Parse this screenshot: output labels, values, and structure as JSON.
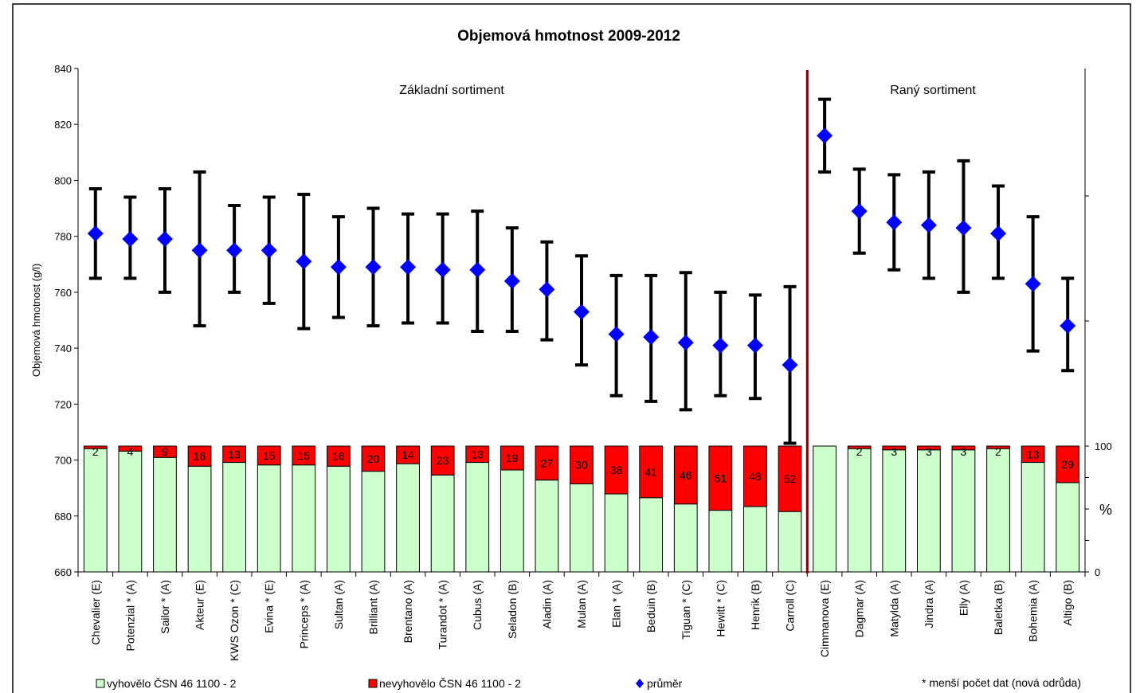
{
  "chart_data": {
    "type": "combo-bar-errorbar",
    "title": "Objemová hmotnost 2009-2012",
    "ylabel": "Objemová hmotnost (g/l)",
    "ylim": [
      660,
      840
    ],
    "yticks": [
      660,
      680,
      700,
      720,
      740,
      760,
      780,
      800,
      820,
      840
    ],
    "y2ticks": [
      "0",
      "%",
      "100"
    ],
    "sections": [
      {
        "label": "Základní sortiment"
      },
      {
        "label": "Raný sortiment"
      }
    ],
    "categories": [
      "Chevalier (E)",
      "Potenzial * (A)",
      "Sailor * (A)",
      "Akteur (E)",
      "KWS Ozon * (C)",
      "Evina * (E)",
      "Princeps * (A)",
      "Sultan (A)",
      "Brilliant (A)",
      "Brentano (A)",
      "Turandot * (A)",
      "Cubus (A)",
      "Seladon (B)",
      "Aladin (A)",
      "Mulan (A)",
      "Elan * (A)",
      "Beduin (B)",
      "Tiguan * (C)",
      "Hewitt * (C)",
      "Henrik (B)",
      "Carroll (C)",
      "Cimmanova (E)",
      "Dagmar (A)",
      "Matylda (A)",
      "Jindra (A)",
      "Elly (A)",
      "Baletka (B)",
      "Bohemia (A)",
      "Altigo (B)"
    ],
    "mean": [
      781,
      779,
      779,
      775,
      775,
      775,
      771,
      769,
      769,
      769,
      768,
      768,
      764,
      761,
      753,
      745,
      744,
      742,
      741,
      741,
      734,
      816,
      789,
      785,
      784,
      783,
      781,
      763,
      748
    ],
    "err_low": [
      765,
      765,
      760,
      748,
      760,
      756,
      747,
      751,
      748,
      749,
      749,
      746,
      746,
      743,
      734,
      723,
      721,
      718,
      723,
      722,
      706,
      803,
      774,
      768,
      765,
      760,
      765,
      739,
      732
    ],
    "err_high": [
      797,
      794,
      797,
      803,
      791,
      794,
      795,
      787,
      790,
      788,
      788,
      789,
      783,
      778,
      773,
      766,
      766,
      767,
      760,
      759,
      762,
      829,
      804,
      802,
      803,
      807,
      798,
      787,
      765
    ],
    "fail_percent": [
      2,
      4,
      9,
      16,
      13,
      15,
      15,
      16,
      20,
      14,
      23,
      13,
      19,
      27,
      30,
      38,
      41,
      46,
      51,
      48,
      52,
      0,
      2,
      3,
      3,
      3,
      2,
      13,
      29
    ],
    "fail_labels": [
      "2",
      "4",
      "9",
      "16",
      "13",
      "15",
      "15",
      "16",
      "20",
      "14",
      "23",
      "13",
      "19",
      "27",
      "30",
      "38",
      "41",
      "46",
      "51",
      "48",
      "52",
      "",
      "2",
      "3",
      "3",
      "3",
      "2",
      "13",
      "29"
    ],
    "legend": [
      {
        "label": "vyhovělo ČSN 46 1100 - 2",
        "color": "#ccffcc"
      },
      {
        "label": "nevyhovělo ČSN 46 1100 - 2",
        "color": "#ff0000"
      },
      {
        "label": "průměr",
        "color": "#0000ff"
      }
    ],
    "note": "* menší počet dat (nová odrůda)",
    "colors": {
      "pass": "#ccffcc",
      "fail": "#ff0000",
      "mean": "#0000ff",
      "errorbar": "#000000",
      "divider": "#800000"
    }
  }
}
